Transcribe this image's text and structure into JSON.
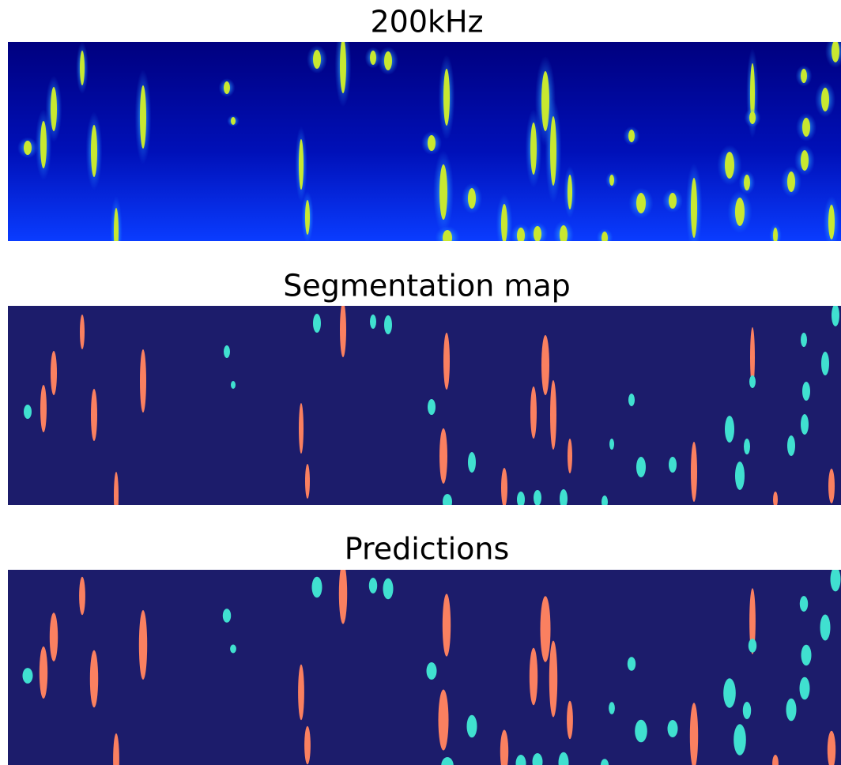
{
  "panels": [
    {
      "title": "200kHz"
    },
    {
      "title": "Segmentation map"
    },
    {
      "title": "Predictions"
    }
  ]
}
